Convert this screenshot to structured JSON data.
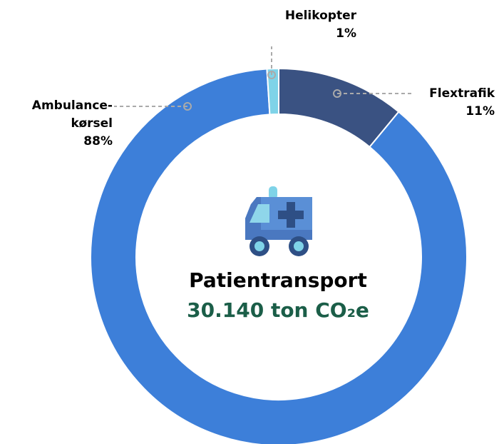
{
  "chart_data": {
    "type": "pie",
    "donut": true,
    "title": "Patientransport",
    "subtitle": "30.140 ton CO₂e",
    "categories": [
      "Flextrafik",
      "Ambulance-kørsel",
      "Helikopter"
    ],
    "values": [
      11,
      88,
      1
    ],
    "value_labels": [
      "11%",
      "88%",
      "1%"
    ],
    "colors": [
      "#3a5282",
      "#3d7fd9",
      "#7fd3e8"
    ]
  }
}
